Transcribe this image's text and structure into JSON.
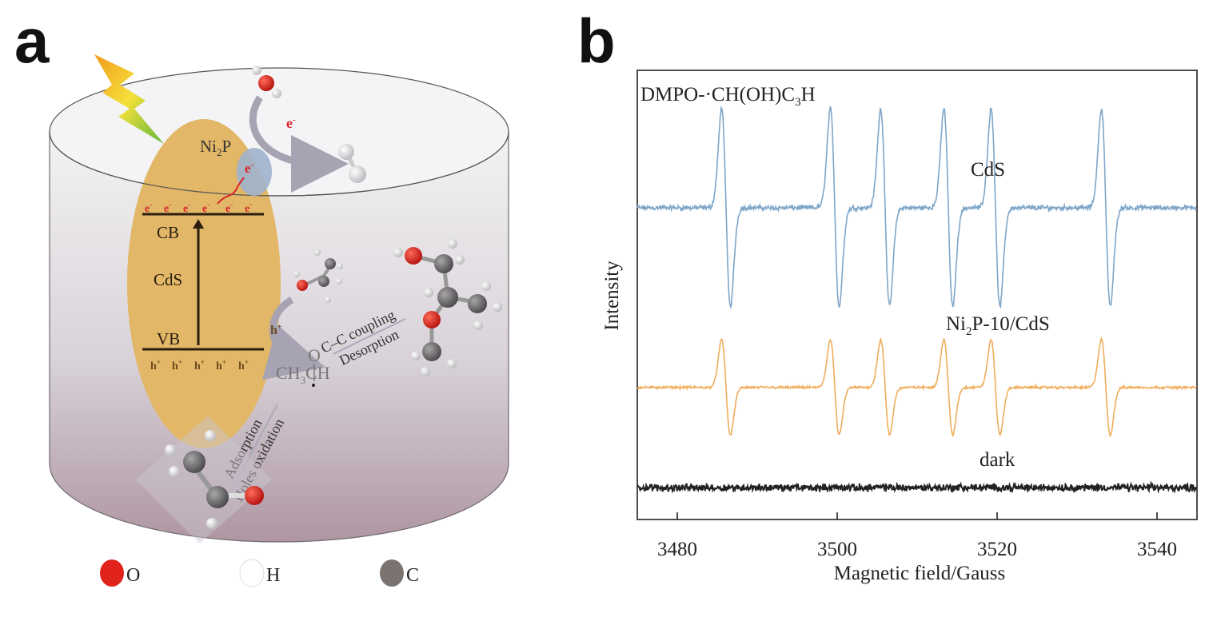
{
  "panel_a": {
    "letter": "a",
    "catalyst_label": "Ni",
    "catalyst_sub": "2",
    "catalyst_suffix": "P",
    "electron": "e",
    "electron_sup": "-",
    "cb": "CB",
    "semiconductor": "CdS",
    "vb": "VB",
    "hole": "h",
    "hole_sup": "+",
    "intermediate_o": "O",
    "intermediate_main": "CH",
    "intermediate_sub": "3",
    "intermediate_suffix": "CH",
    "step_coupling": "C–C coupling",
    "step_desorption": "Desorption",
    "step_adsorption": "Adsorption",
    "step_oxidation": "Holes oxidation",
    "legend": [
      {
        "label": "O",
        "color": "#e0241b"
      },
      {
        "label": "H",
        "color": "#ffffff"
      },
      {
        "label": "C",
        "color": "#7a7370"
      }
    ],
    "colors": {
      "cds": "#e2b767",
      "ni2p": "#9fb3cc",
      "electron": "#d8242a",
      "hole": "#6b4a1f"
    }
  },
  "panel_b": {
    "letter": "b",
    "chart_data": {
      "type": "line",
      "title": "DMPO-·CH(OH)C",
      "title_sub": "3",
      "title_suffix": "H",
      "xlabel": "Magnetic field/Gauss",
      "ylabel": "Intensity",
      "xlim": [
        3475,
        3545
      ],
      "ylim": [
        0,
        100
      ],
      "xticks": [
        3480,
        3500,
        3520,
        3540
      ],
      "yticks_shown": false,
      "grid": false,
      "peak_centers_gauss": [
        3486.1,
        3499.7,
        3506.0,
        3513.9,
        3519.8,
        3533.6
      ],
      "series": [
        {
          "name": "CdS",
          "label": "CdS",
          "color": "#7ea6c9",
          "baseline": 69.4,
          "amplitude": 22.0,
          "noise": 0.7
        },
        {
          "name": "Ni2P-10/CdS",
          "label_main": "Ni",
          "label_sub": "2",
          "label_suffix": "P-10/CdS",
          "color": "#efad5c",
          "baseline": 29.4,
          "amplitude": 10.6,
          "noise": 0.35
        },
        {
          "name": "dark",
          "label": "dark",
          "color": "#222222",
          "baseline": 7.1,
          "amplitude": 0,
          "noise": 1.0
        }
      ]
    }
  }
}
